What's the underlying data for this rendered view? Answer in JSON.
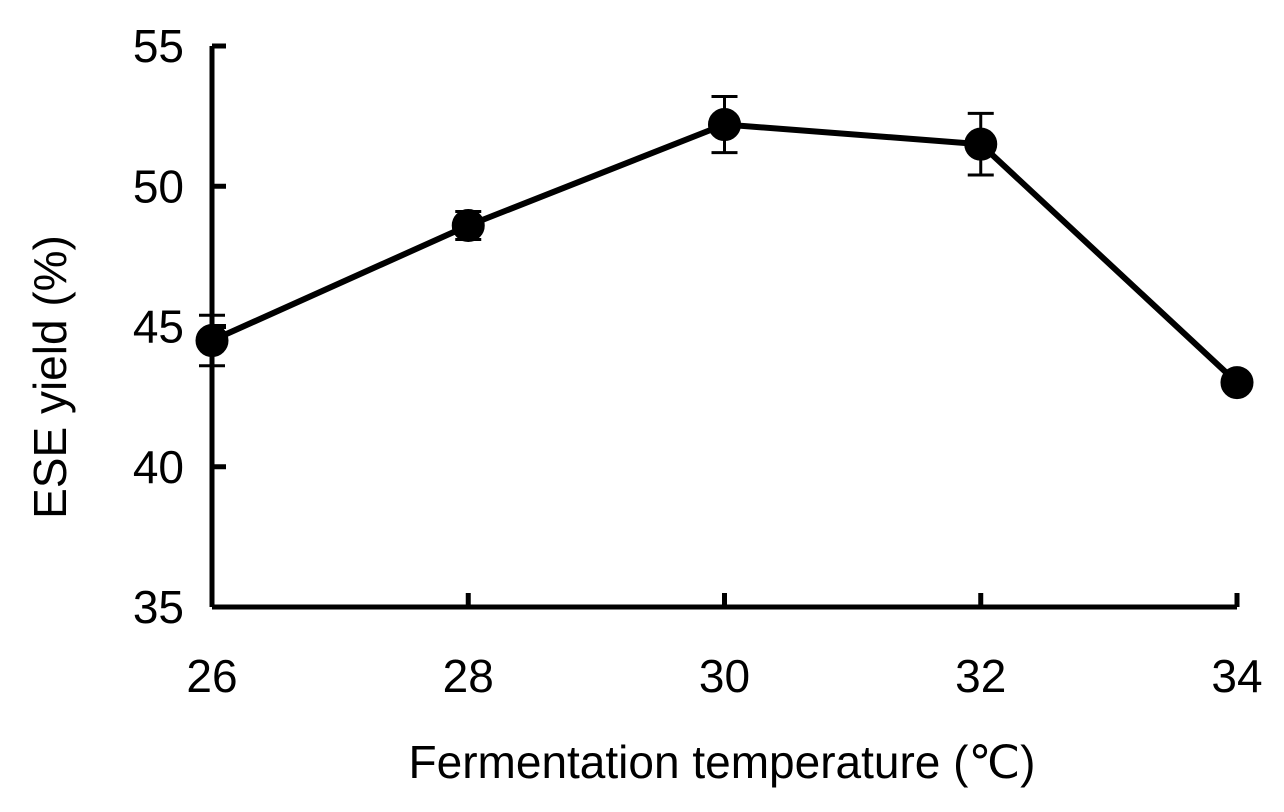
{
  "chart_data": {
    "type": "line",
    "title": "",
    "xlabel": "Fermentation temperature (℃)",
    "ylabel": "ESE yield (%)",
    "x": [
      26,
      28,
      30,
      32,
      34
    ],
    "xlim": [
      26,
      34
    ],
    "ylim": [
      35,
      55
    ],
    "xticks": [
      26,
      28,
      30,
      32,
      34
    ],
    "yticks": [
      35,
      40,
      45,
      50,
      55
    ],
    "series": [
      {
        "values": [
          44.5,
          48.6,
          52.2,
          51.5,
          43.0
        ],
        "errors": [
          0.9,
          0.5,
          1.0,
          1.1,
          0.0
        ],
        "color": "#000000",
        "marker": "filled-circle"
      }
    ],
    "grid": false,
    "legend": "none"
  }
}
